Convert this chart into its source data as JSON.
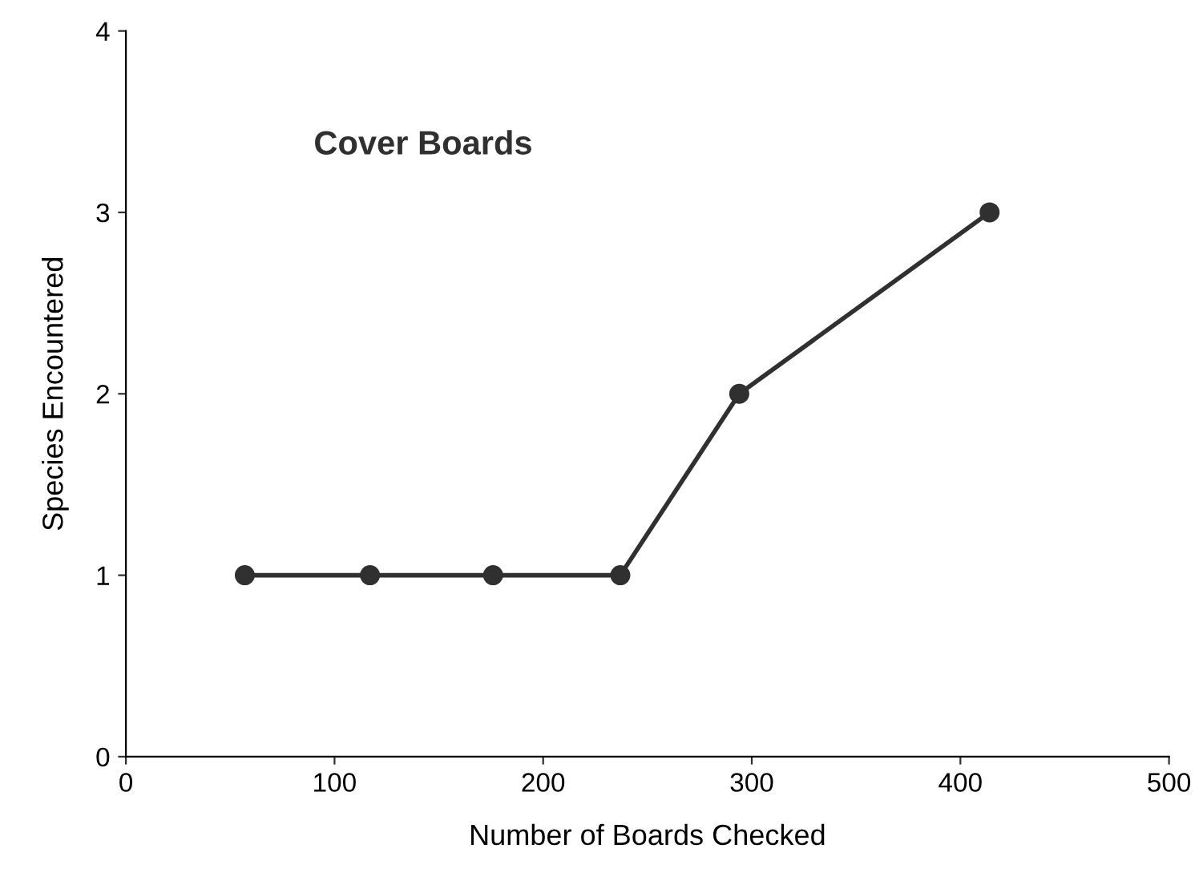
{
  "chart_data": {
    "type": "line",
    "title": "Cover Boards",
    "xlabel": "Number of Boards Checked",
    "ylabel": "Species Encountered",
    "x": [
      57,
      117,
      176,
      237,
      294,
      414
    ],
    "series": [
      {
        "color": "#303030",
        "values": [
          1,
          1,
          1,
          1,
          2,
          3
        ]
      }
    ],
    "xlim": [
      0,
      500
    ],
    "xticks": [
      0,
      100,
      200,
      300,
      400,
      500
    ],
    "ylim": [
      0,
      4
    ],
    "yticks": [
      0,
      1,
      2,
      3,
      4
    ],
    "marker": "circle",
    "line_style": "solid",
    "grid": false,
    "legend": false
  }
}
